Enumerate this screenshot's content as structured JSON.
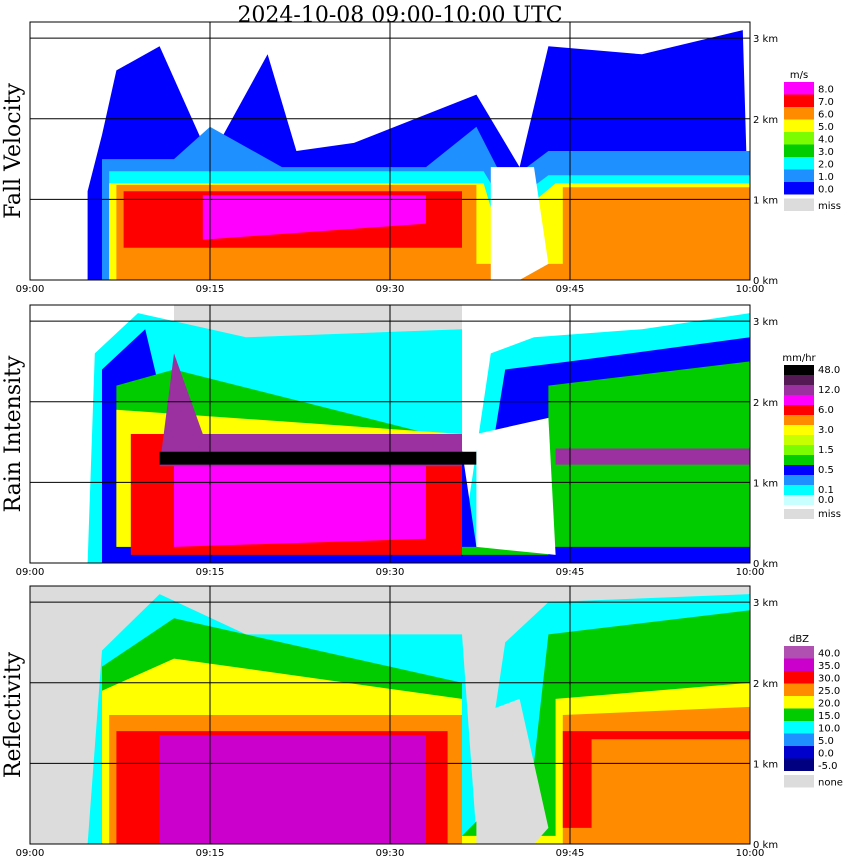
{
  "title": "2024-10-08   09:00-10:00 UTC",
  "colors": {
    "missing": "#dcdcdc",
    "grid": "#000000",
    "sky": "#ffffff"
  },
  "chart_data": [
    {
      "type": "heatmap",
      "name": "fall-velocity",
      "ylabel": "Fall Velocity",
      "x_ticks": [
        "09:00",
        "09:15",
        "09:30",
        "09:45",
        "10:00"
      ],
      "y_ticks": [
        "0 km",
        "1 km",
        "2 km",
        "3 km"
      ],
      "xlim": [
        "09:00",
        "10:00"
      ],
      "ylim_km": [
        0,
        3.2
      ],
      "grid": true,
      "legend_placement": "right",
      "legend_unit": "m/s",
      "legend": [
        {
          "label": "8.0",
          "color": "#ff00ff"
        },
        {
          "label": "7.0",
          "color": "#ff0000"
        },
        {
          "label": "6.0",
          "color": "#ff8c00"
        },
        {
          "label": "5.0",
          "color": "#ffff00"
        },
        {
          "label": "4.0",
          "color": "#7cfc00"
        },
        {
          "label": "3.0",
          "color": "#00cc00"
        },
        {
          "label": "2.0",
          "color": "#00ffff"
        },
        {
          "label": "1.0",
          "color": "#1e90ff"
        },
        {
          "label": "0.0",
          "color": "#0000ff"
        },
        {
          "label": "miss",
          "color": "#dcdcdc"
        }
      ]
    },
    {
      "type": "heatmap",
      "name": "rain-intensity",
      "ylabel": "Rain Intensity",
      "x_ticks": [
        "09:00",
        "09:15",
        "09:30",
        "09:45",
        "10:00"
      ],
      "y_ticks": [
        "0 km",
        "1 km",
        "2 km",
        "3 km"
      ],
      "xlim": [
        "09:00",
        "10:00"
      ],
      "ylim_km": [
        0,
        3.2
      ],
      "grid": true,
      "legend_placement": "right",
      "legend_unit": "mm/hr",
      "legend": [
        {
          "label": "48.0",
          "color": "#000000"
        },
        {
          "label": "",
          "color": "#551a55"
        },
        {
          "label": "12.0",
          "color": "#9b30a0"
        },
        {
          "label": "",
          "color": "#ff00ff"
        },
        {
          "label": "6.0",
          "color": "#ff0000"
        },
        {
          "label": "",
          "color": "#ff8c00"
        },
        {
          "label": "3.0",
          "color": "#ffff00"
        },
        {
          "label": "",
          "color": "#c8ff00"
        },
        {
          "label": "1.5",
          "color": "#7cfc00"
        },
        {
          "label": "",
          "color": "#00cc00"
        },
        {
          "label": "0.5",
          "color": "#0000ff"
        },
        {
          "label": "",
          "color": "#1e90ff"
        },
        {
          "label": "0.1",
          "color": "#00ffff"
        },
        {
          "label": "0.0",
          "color": "#c8ffff"
        },
        {
          "label": "miss",
          "color": "#dcdcdc"
        }
      ]
    },
    {
      "type": "heatmap",
      "name": "reflectivity",
      "ylabel": "Reflectivity",
      "x_ticks": [
        "09:00",
        "09:15",
        "09:30",
        "09:45",
        "10:00"
      ],
      "y_ticks": [
        "0 km",
        "1 km",
        "2 km",
        "3 km"
      ],
      "xlim": [
        "09:00",
        "10:00"
      ],
      "ylim_km": [
        0,
        3.2
      ],
      "grid": true,
      "legend_placement": "right",
      "legend_unit": "dBZ",
      "legend": [
        {
          "label": "40.0",
          "color": "#b050b0"
        },
        {
          "label": "35.0",
          "color": "#cc00cc"
        },
        {
          "label": "30.0",
          "color": "#ff0000"
        },
        {
          "label": "25.0",
          "color": "#ff8c00"
        },
        {
          "label": "20.0",
          "color": "#ffff00"
        },
        {
          "label": "15.0",
          "color": "#00cc00"
        },
        {
          "label": "10.0",
          "color": "#00ffff"
        },
        {
          "label": "5.0",
          "color": "#1e90ff"
        },
        {
          "label": "0.0",
          "color": "#0000cd"
        },
        {
          "label": "-5.0",
          "color": "#000080"
        },
        {
          "label": "none",
          "color": "#dcdcdc"
        }
      ]
    }
  ]
}
